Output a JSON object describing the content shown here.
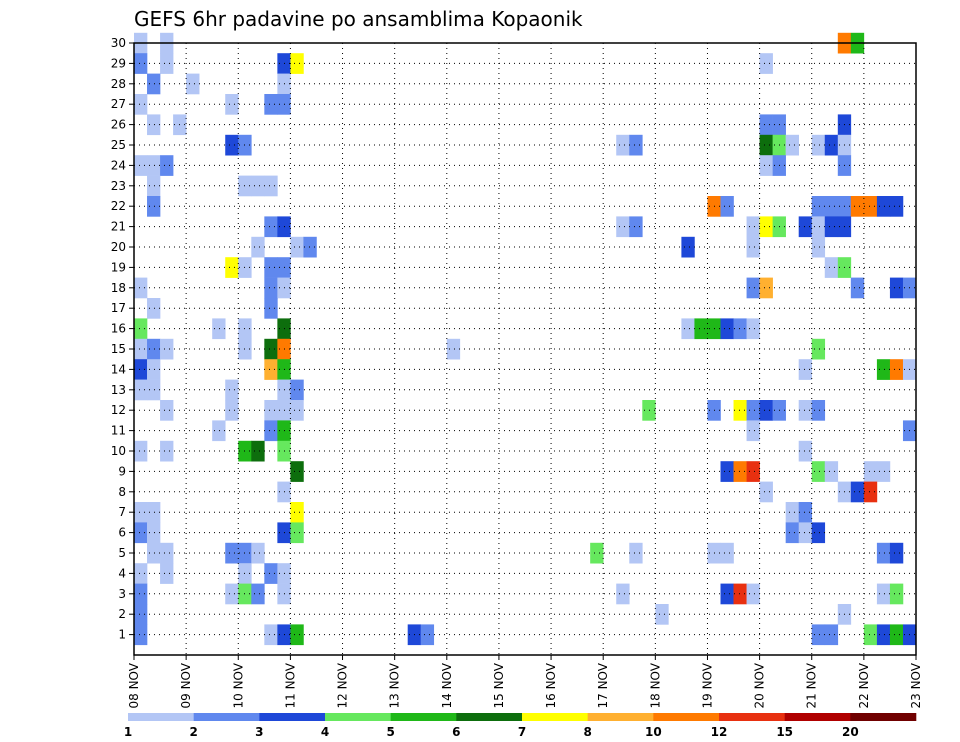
{
  "chart_data": {
    "type": "heatmap",
    "title": "GEFS 6hr padavine po ansamblima Kopaonik",
    "xlabel": "",
    "ylabel": "",
    "x_tick_labels": [
      "08 NOV",
      "09 NOV",
      "10 NOV",
      "11 NOV",
      "12 NOV",
      "13 NOV",
      "14 NOV",
      "15 NOV",
      "16 NOV",
      "17 NOV",
      "18 NOV",
      "19 NOV",
      "20 NOV",
      "21 NOV",
      "22 NOV",
      "23 NOV"
    ],
    "y_tick_labels": [
      "1",
      "2",
      "3",
      "4",
      "5",
      "6",
      "7",
      "8",
      "9",
      "10",
      "11",
      "12",
      "13",
      "14",
      "15",
      "16",
      "17",
      "18",
      "19",
      "20",
      "21",
      "22",
      "23",
      "24",
      "25",
      "26",
      "27",
      "28",
      "29",
      "30"
    ],
    "x_range_steps_6h": [
      0,
      60
    ],
    "y_range_members": [
      0,
      30
    ],
    "grid": true,
    "levels": [
      {
        "label": "1",
        "color": "#b3c6f5"
      },
      {
        "label": "2",
        "color": "#6088ee"
      },
      {
        "label": "3",
        "color": "#1e48d8"
      },
      {
        "label": "4",
        "color": "#66e85e"
      },
      {
        "label": "5",
        "color": "#1fb818"
      },
      {
        "label": "6",
        "color": "#0d6e0d"
      },
      {
        "label": "7",
        "color": "#ffff00"
      },
      {
        "label": "8",
        "color": "#ffb030"
      },
      {
        "label": "10",
        "color": "#ff7a00"
      },
      {
        "label": "12",
        "color": "#e83010"
      },
      {
        "label": "15",
        "color": "#b00000"
      },
      {
        "label": "20",
        "color": "#700000"
      }
    ],
    "colorbar_tick_labels": [
      "1",
      "2",
      "3",
      "4",
      "5",
      "6",
      "7",
      "8",
      "10",
      "12",
      "15",
      "20"
    ],
    "cells_note": "each cell = [time_step_6h_from_08NOV_00Z, ensemble_member, level_index]",
    "cells": [
      [
        0,
        30,
        0
      ],
      [
        2,
        30,
        0
      ],
      [
        54,
        30,
        8
      ],
      [
        55,
        30,
        4
      ],
      [
        0,
        29,
        1
      ],
      [
        2,
        29,
        0
      ],
      [
        11,
        29,
        2
      ],
      [
        12,
        29,
        6
      ],
      [
        48,
        29,
        0
      ],
      [
        1,
        28,
        1
      ],
      [
        4,
        28,
        0
      ],
      [
        11,
        28,
        0
      ],
      [
        0,
        27,
        0
      ],
      [
        7,
        27,
        0
      ],
      [
        10,
        27,
        1
      ],
      [
        11,
        27,
        1
      ],
      [
        1,
        26,
        0
      ],
      [
        3,
        26,
        0
      ],
      [
        48,
        26,
        1
      ],
      [
        49,
        26,
        1
      ],
      [
        54,
        26,
        2
      ],
      [
        7,
        25,
        2
      ],
      [
        8,
        25,
        1
      ],
      [
        37,
        25,
        0
      ],
      [
        38,
        25,
        1
      ],
      [
        48,
        25,
        5
      ],
      [
        49,
        25,
        3
      ],
      [
        50,
        25,
        0
      ],
      [
        52,
        25,
        0
      ],
      [
        53,
        25,
        2
      ],
      [
        54,
        25,
        0
      ],
      [
        0,
        24,
        0
      ],
      [
        1,
        24,
        0
      ],
      [
        2,
        24,
        1
      ],
      [
        48,
        24,
        0
      ],
      [
        49,
        24,
        1
      ],
      [
        54,
        24,
        1
      ],
      [
        1,
        23,
        0
      ],
      [
        8,
        23,
        0
      ],
      [
        9,
        23,
        0
      ],
      [
        10,
        23,
        0
      ],
      [
        1,
        22,
        1
      ],
      [
        44,
        22,
        8
      ],
      [
        45,
        22,
        1
      ],
      [
        52,
        22,
        1
      ],
      [
        53,
        22,
        1
      ],
      [
        54,
        22,
        1
      ],
      [
        55,
        22,
        8
      ],
      [
        56,
        22,
        8
      ],
      [
        57,
        22,
        2
      ],
      [
        58,
        22,
        2
      ],
      [
        10,
        21,
        1
      ],
      [
        11,
        21,
        2
      ],
      [
        37,
        21,
        0
      ],
      [
        38,
        21,
        1
      ],
      [
        47,
        21,
        0
      ],
      [
        48,
        21,
        6
      ],
      [
        49,
        21,
        3
      ],
      [
        51,
        21,
        2
      ],
      [
        52,
        21,
        0
      ],
      [
        53,
        21,
        2
      ],
      [
        54,
        21,
        2
      ],
      [
        9,
        20,
        0
      ],
      [
        12,
        20,
        0
      ],
      [
        13,
        20,
        1
      ],
      [
        42,
        20,
        2
      ],
      [
        47,
        20,
        0
      ],
      [
        52,
        20,
        0
      ],
      [
        7,
        19,
        6
      ],
      [
        8,
        19,
        0
      ],
      [
        10,
        19,
        1
      ],
      [
        11,
        19,
        1
      ],
      [
        53,
        19,
        0
      ],
      [
        54,
        19,
        3
      ],
      [
        0,
        18,
        0
      ],
      [
        10,
        18,
        1
      ],
      [
        11,
        18,
        0
      ],
      [
        47,
        18,
        1
      ],
      [
        48,
        18,
        7
      ],
      [
        55,
        18,
        1
      ],
      [
        58,
        18,
        2
      ],
      [
        59,
        18,
        1
      ],
      [
        1,
        17,
        0
      ],
      [
        10,
        17,
        1
      ],
      [
        0,
        16,
        3
      ],
      [
        6,
        16,
        0
      ],
      [
        8,
        16,
        0
      ],
      [
        11,
        16,
        5
      ],
      [
        42,
        16,
        0
      ],
      [
        43,
        16,
        4
      ],
      [
        44,
        16,
        4
      ],
      [
        45,
        16,
        2
      ],
      [
        46,
        16,
        1
      ],
      [
        47,
        16,
        0
      ],
      [
        0,
        15,
        0
      ],
      [
        1,
        15,
        1
      ],
      [
        2,
        15,
        0
      ],
      [
        8,
        15,
        0
      ],
      [
        10,
        15,
        5
      ],
      [
        11,
        15,
        8
      ],
      [
        24,
        15,
        0
      ],
      [
        52,
        15,
        3
      ],
      [
        0,
        14,
        2
      ],
      [
        1,
        14,
        0
      ],
      [
        10,
        14,
        7
      ],
      [
        11,
        14,
        4
      ],
      [
        51,
        14,
        0
      ],
      [
        57,
        14,
        4
      ],
      [
        58,
        14,
        8
      ],
      [
        59,
        14,
        0
      ],
      [
        0,
        13,
        0
      ],
      [
        1,
        13,
        0
      ],
      [
        7,
        13,
        0
      ],
      [
        11,
        13,
        0
      ],
      [
        12,
        13,
        1
      ],
      [
        2,
        12,
        0
      ],
      [
        7,
        12,
        0
      ],
      [
        10,
        12,
        0
      ],
      [
        11,
        12,
        0
      ],
      [
        12,
        12,
        0
      ],
      [
        39,
        12,
        3
      ],
      [
        44,
        12,
        1
      ],
      [
        46,
        12,
        6
      ],
      [
        47,
        12,
        1
      ],
      [
        48,
        12,
        2
      ],
      [
        49,
        12,
        1
      ],
      [
        51,
        12,
        0
      ],
      [
        52,
        12,
        1
      ],
      [
        6,
        11,
        0
      ],
      [
        10,
        11,
        1
      ],
      [
        11,
        11,
        4
      ],
      [
        47,
        11,
        0
      ],
      [
        59,
        11,
        1
      ],
      [
        0,
        10,
        0
      ],
      [
        2,
        10,
        0
      ],
      [
        8,
        10,
        4
      ],
      [
        9,
        10,
        5
      ],
      [
        11,
        10,
        3
      ],
      [
        51,
        10,
        0
      ],
      [
        12,
        9,
        5
      ],
      [
        45,
        9,
        2
      ],
      [
        46,
        9,
        8
      ],
      [
        47,
        9,
        9
      ],
      [
        52,
        9,
        3
      ],
      [
        53,
        9,
        0
      ],
      [
        56,
        9,
        0
      ],
      [
        57,
        9,
        0
      ],
      [
        11,
        8,
        0
      ],
      [
        48,
        8,
        0
      ],
      [
        54,
        8,
        0
      ],
      [
        55,
        8,
        2
      ],
      [
        56,
        8,
        9
      ],
      [
        0,
        7,
        0
      ],
      [
        1,
        7,
        0
      ],
      [
        12,
        7,
        6
      ],
      [
        50,
        7,
        0
      ],
      [
        51,
        7,
        1
      ],
      [
        0,
        6,
        1
      ],
      [
        1,
        6,
        0
      ],
      [
        11,
        6,
        2
      ],
      [
        12,
        6,
        3
      ],
      [
        50,
        6,
        1
      ],
      [
        51,
        6,
        0
      ],
      [
        52,
        6,
        2
      ],
      [
        1,
        5,
        0
      ],
      [
        2,
        5,
        0
      ],
      [
        7,
        5,
        1
      ],
      [
        8,
        5,
        1
      ],
      [
        9,
        5,
        0
      ],
      [
        35,
        5,
        3
      ],
      [
        38,
        5,
        0
      ],
      [
        44,
        5,
        0
      ],
      [
        45,
        5,
        0
      ],
      [
        57,
        5,
        1
      ],
      [
        58,
        5,
        2
      ],
      [
        0,
        4,
        0
      ],
      [
        2,
        4,
        0
      ],
      [
        8,
        4,
        0
      ],
      [
        10,
        4,
        1
      ],
      [
        11,
        4,
        0
      ],
      [
        0,
        3,
        1
      ],
      [
        7,
        3,
        0
      ],
      [
        8,
        3,
        3
      ],
      [
        9,
        3,
        1
      ],
      [
        11,
        3,
        0
      ],
      [
        37,
        3,
        0
      ],
      [
        45,
        3,
        2
      ],
      [
        46,
        3,
        9
      ],
      [
        47,
        3,
        0
      ],
      [
        57,
        3,
        0
      ],
      [
        58,
        3,
        3
      ],
      [
        0,
        2,
        1
      ],
      [
        40,
        2,
        0
      ],
      [
        54,
        2,
        0
      ],
      [
        0,
        1,
        1
      ],
      [
        10,
        1,
        0
      ],
      [
        11,
        1,
        2
      ],
      [
        12,
        1,
        4
      ],
      [
        21,
        1,
        2
      ],
      [
        22,
        1,
        1
      ],
      [
        52,
        1,
        1
      ],
      [
        53,
        1,
        1
      ],
      [
        56,
        1,
        3
      ],
      [
        57,
        1,
        2
      ],
      [
        58,
        1,
        4
      ],
      [
        59,
        1,
        2
      ]
    ]
  }
}
